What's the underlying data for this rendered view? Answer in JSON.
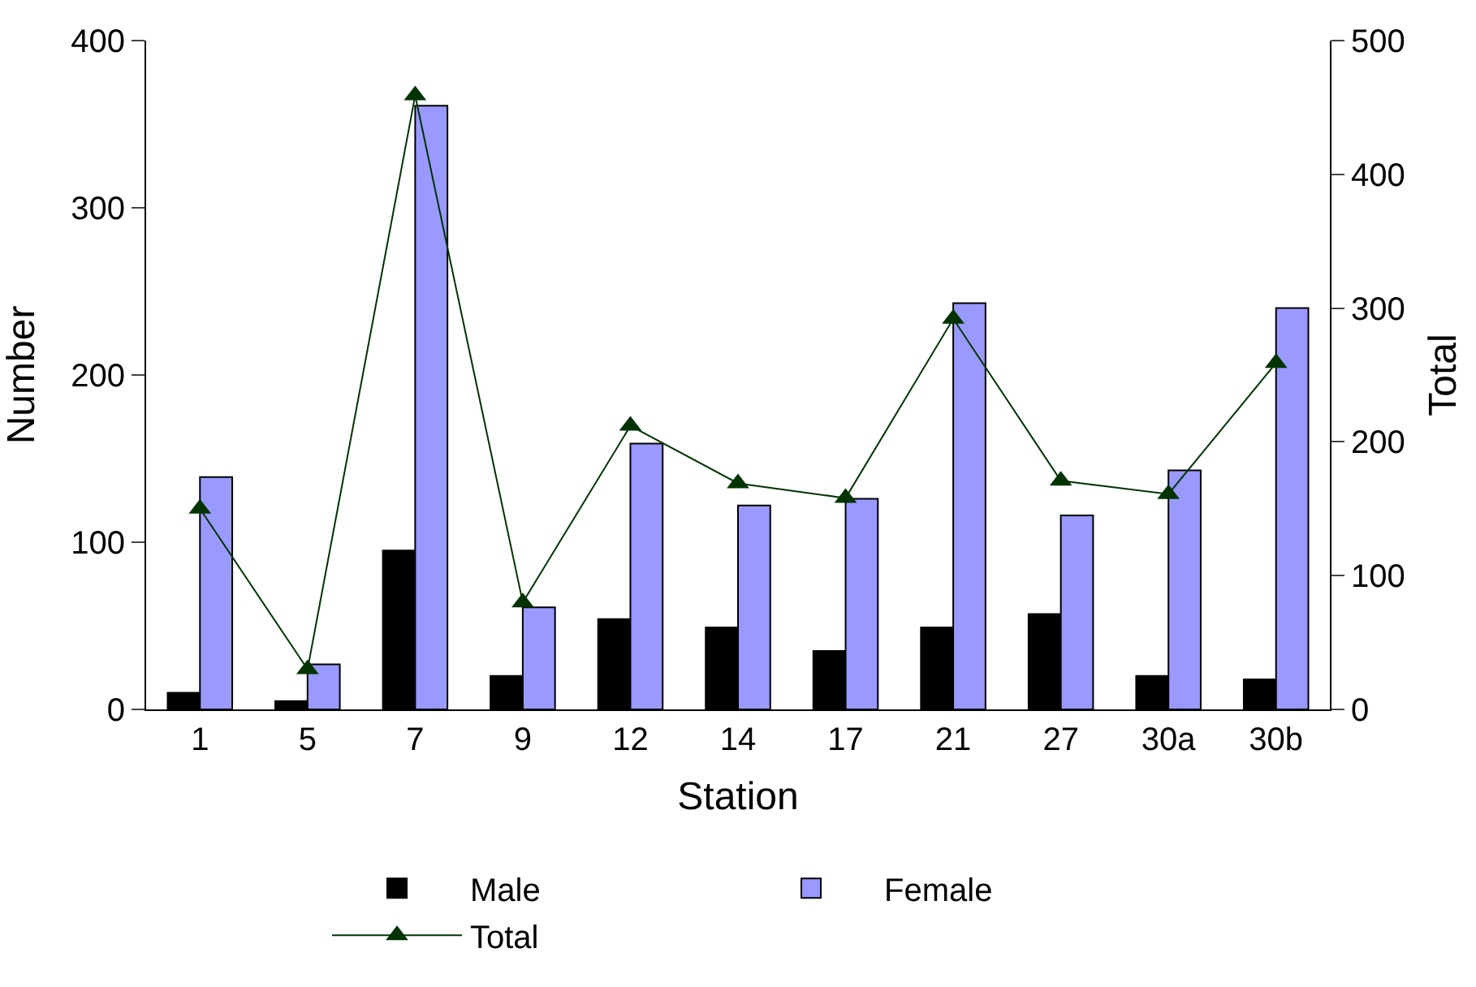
{
  "chart_data": {
    "type": "bar",
    "xlabel": "Station",
    "ylabel": "Number",
    "y2label": "Total",
    "categories": [
      "1",
      "5",
      "7",
      "9",
      "12",
      "14",
      "17",
      "21",
      "27",
      "30a",
      "30b"
    ],
    "series": [
      {
        "name": "Male",
        "color": "#000000",
        "values": [
          10,
          5,
          95,
          20,
          54,
          49,
          35,
          49,
          57,
          20,
          18
        ]
      },
      {
        "name": "Female",
        "color": "#9999ff",
        "values": [
          139,
          27,
          361,
          61,
          159,
          122,
          126,
          243,
          116,
          143,
          240
        ]
      },
      {
        "name": "Total",
        "type": "line",
        "axis": "y2",
        "color": "#003300",
        "marker": "triangle",
        "values": [
          150,
          30,
          459,
          80,
          212,
          169,
          158,
          292,
          171,
          161,
          259
        ]
      }
    ],
    "ylim": [
      0,
      400
    ],
    "yticks": [
      0,
      100,
      200,
      300,
      400
    ],
    "y2lim": [
      0,
      500
    ],
    "y2ticks": [
      0,
      100,
      200,
      300,
      400,
      500
    ],
    "legend": "bottom"
  }
}
